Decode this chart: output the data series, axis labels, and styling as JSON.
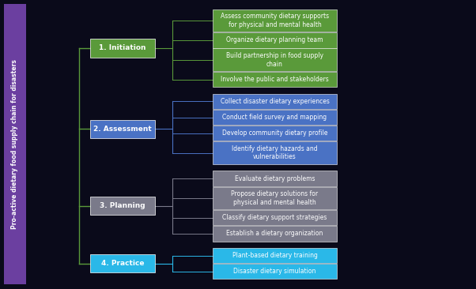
{
  "title": "Pro-active dietary food supply chain for disasters",
  "background": "#0a0a1a",
  "phases": [
    {
      "label": "1. Initiation",
      "color": "#5a9a3a",
      "text_color": "#ffffff",
      "tasks": [
        {
          "text": "Assess community dietary supports\nfor physical and mental health",
          "multiline": true
        },
        {
          "text": "Organize dietary planning team",
          "multiline": false
        },
        {
          "text": "Build partnership in food supply\nchain",
          "multiline": true
        },
        {
          "text": "Involve the public and stakeholders",
          "multiline": false
        }
      ]
    },
    {
      "label": "2. Assessment",
      "color": "#4a72c4",
      "text_color": "#ffffff",
      "tasks": [
        {
          "text": "Collect disaster dietary experiences",
          "multiline": false
        },
        {
          "text": "Conduct field survey and mapping",
          "multiline": false
        },
        {
          "text": "Develop community dietary profile",
          "multiline": false
        },
        {
          "text": "Identify dietary hazards and\nvulnerabilities",
          "multiline": true
        }
      ]
    },
    {
      "label": "3. Planning",
      "color": "#7a7a8a",
      "text_color": "#ffffff",
      "tasks": [
        {
          "text": "Evaluate dietary problems",
          "multiline": false
        },
        {
          "text": "Propose dietary solutions for\nphysical and mental health",
          "multiline": true
        },
        {
          "text": "Classify dietary support strategies",
          "multiline": false
        },
        {
          "text": "Establish a dietary organization",
          "multiline": false
        }
      ]
    },
    {
      "label": "4. Practice",
      "color": "#2ab8e8",
      "text_color": "#ffffff",
      "tasks": [
        {
          "text": "Plant-based dietary training",
          "multiline": false
        },
        {
          "text": "Disaster dietary simulation",
          "multiline": false
        }
      ]
    }
  ],
  "title_bar_color": "#6b3fa0",
  "line_color": "#5a9a3a"
}
